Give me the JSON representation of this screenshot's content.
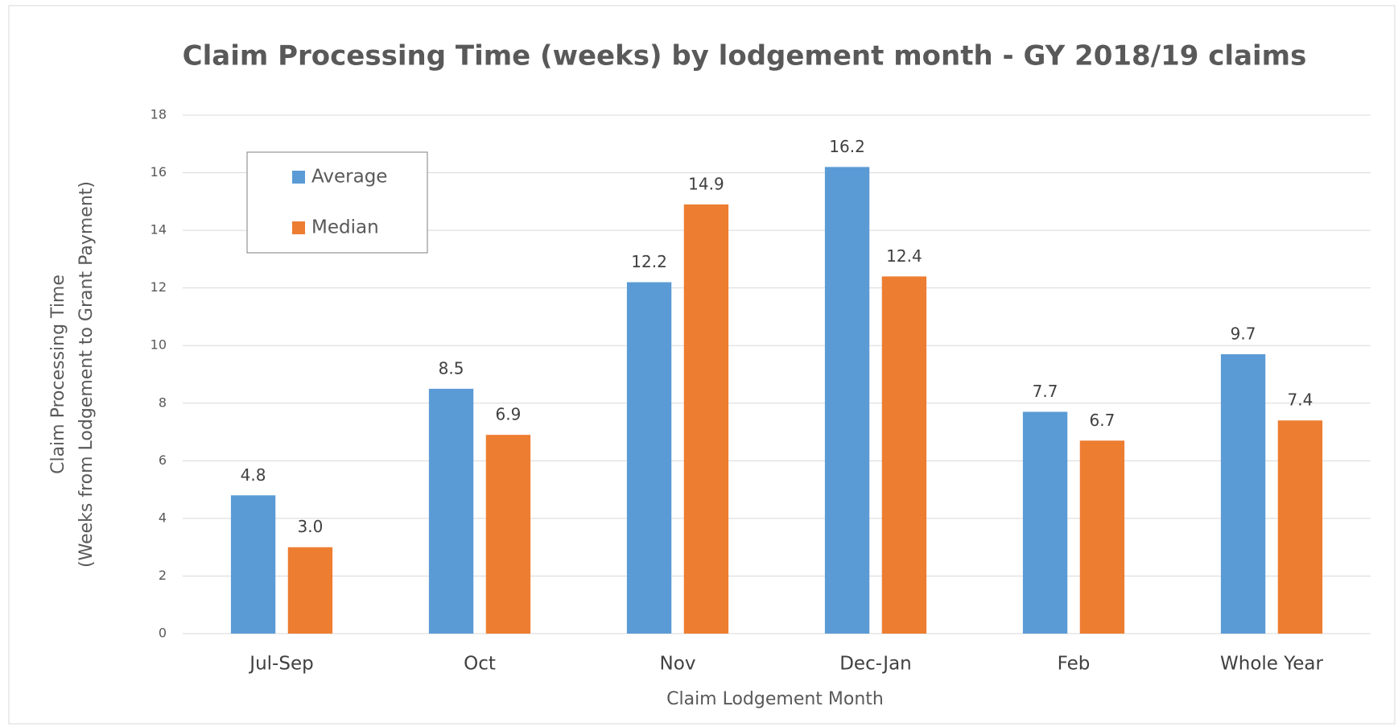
{
  "chart_data": {
    "type": "bar",
    "title": "Claim Processing Time (weeks) by lodgement month - GY 2018/19 claims",
    "y_label": [
      "Claim Processing Time",
      "(Weeks from Lodgement to Grant Payment)"
    ],
    "x_label": "Claim Lodgement Month",
    "categories": [
      "Jul-Sep",
      "Oct",
      "Nov",
      "Dec-Jan",
      "Feb",
      "Whole Year"
    ],
    "series": [
      {
        "name": "Average",
        "color": "#5b9bd5",
        "values": [
          4.8,
          8.5,
          12.2,
          16.2,
          7.7,
          9.7
        ],
        "value_labels": [
          "4.8",
          "8.5",
          "12.2",
          "16.2",
          "7.7",
          "9.7"
        ]
      },
      {
        "name": "Median",
        "color": "#ed7d31",
        "values": [
          3.0,
          6.9,
          14.9,
          12.4,
          6.7,
          7.4
        ],
        "value_labels": [
          "3.0",
          "6.9",
          "14.9",
          "12.4",
          "6.7",
          "7.4"
        ]
      }
    ],
    "ylim": [
      0,
      18
    ],
    "yticks": [
      0,
      2,
      4,
      6,
      8,
      10,
      12,
      14,
      16,
      18
    ],
    "grid": true,
    "legend": "upper left"
  }
}
